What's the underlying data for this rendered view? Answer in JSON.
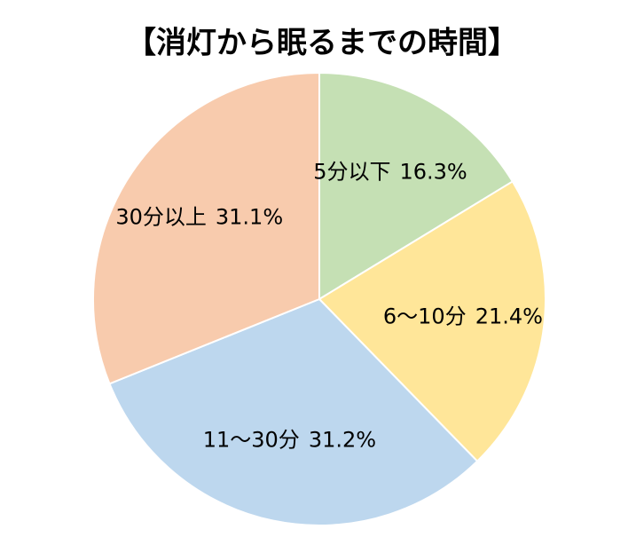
{
  "chart_data": {
    "type": "pie",
    "title": "【消灯から眠るまでの時間】",
    "categories": [
      "5分以下",
      "6～10分",
      "11～30分",
      "30分以上"
    ],
    "values": [
      16.3,
      21.4,
      31.2,
      31.1
    ],
    "value_labels": [
      "16.3%",
      "21.4%",
      "31.2%",
      "31.1%"
    ],
    "colors": [
      "#c5e0b4",
      "#ffe699",
      "#bdd7ee",
      "#f8cbad"
    ]
  }
}
